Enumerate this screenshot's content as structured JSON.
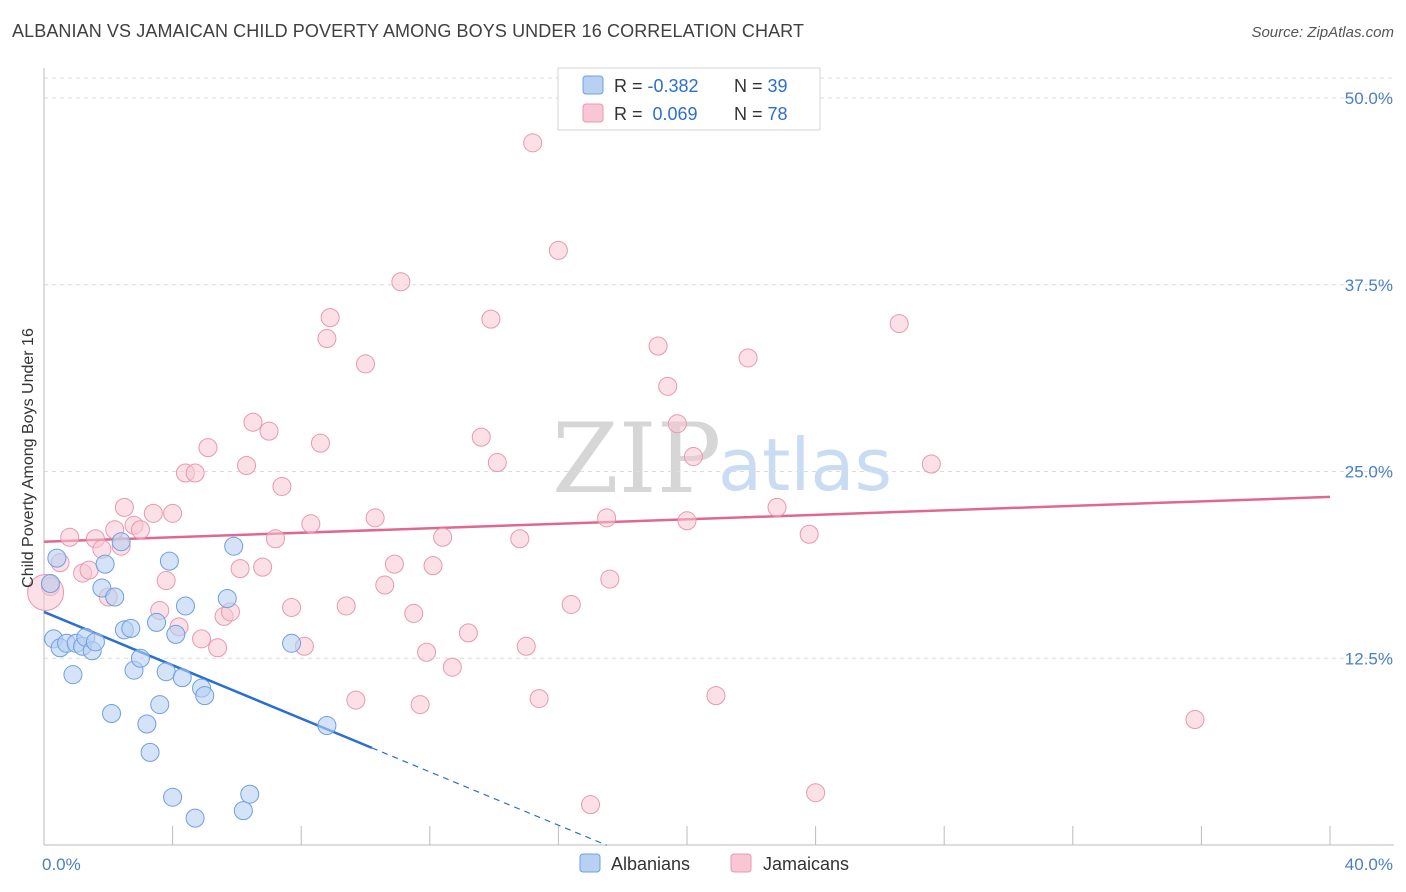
{
  "title": "ALBANIAN VS JAMAICAN CHILD POVERTY AMONG BOYS UNDER 16 CORRELATION CHART",
  "source": "Source: ZipAtlas.com",
  "watermark": {
    "zip": "ZIP",
    "atlas": "atlas"
  },
  "colors": {
    "albanians_fill": "#b8d0f2",
    "albanians_stroke": "#6f9fe0",
    "albanians_line": "#2b6fd0",
    "jamaicans_fill": "#f8c6d4",
    "jamaicans_stroke": "#e898b0",
    "jamaicans_line": "#e06890",
    "tick_text": "#4a7ec8",
    "legend_value": "#2b6fd0"
  },
  "legend": {
    "rows": [
      {
        "r_label": "R = ",
        "r_value": "-0.382",
        "n_label": "N = ",
        "n_value": "39"
      },
      {
        "r_label": "R = ",
        "r_value": " 0.069",
        "n_label": "N = ",
        "n_value": "78"
      }
    ]
  },
  "bottom_legend": {
    "items": [
      "Albanians",
      "Jamaicans"
    ]
  },
  "chart_data": {
    "type": "scatter",
    "title": "ALBANIAN VS JAMAICAN CHILD POVERTY AMONG BOYS UNDER 16 CORRELATION CHART",
    "xlabel": "",
    "ylabel": "Child Poverty Among Boys Under 16",
    "xlim": [
      0,
      40
    ],
    "ylim": [
      0,
      50
    ],
    "x_tick_labels": [
      "0.0%",
      "40.0%"
    ],
    "y_ticks": [
      12.5,
      25.0,
      37.5,
      50.0
    ],
    "y_tick_labels": [
      "12.5%",
      "25.0%",
      "37.5%",
      "50.0%"
    ],
    "grid": true,
    "legend_position": "top-center",
    "series": [
      {
        "name": "Albanians",
        "r": -0.382,
        "n": 39,
        "trend": {
          "x0": 0,
          "y0": 15.6,
          "x1": 10.2,
          "y1": 6.5,
          "dashed_to_x": 17.5
        },
        "points": [
          [
            0.2,
            17.5
          ],
          [
            0.3,
            13.8
          ],
          [
            0.4,
            19.2
          ],
          [
            0.5,
            13.2
          ],
          [
            0.7,
            13.5
          ],
          [
            0.9,
            11.4
          ],
          [
            1.0,
            13.5
          ],
          [
            1.2,
            13.3
          ],
          [
            1.3,
            13.9
          ],
          [
            1.5,
            13.0
          ],
          [
            1.6,
            13.6
          ],
          [
            1.8,
            17.2
          ],
          [
            1.9,
            18.8
          ],
          [
            2.1,
            8.8
          ],
          [
            2.2,
            16.6
          ],
          [
            2.4,
            20.3
          ],
          [
            2.5,
            14.4
          ],
          [
            2.7,
            14.5
          ],
          [
            2.8,
            11.7
          ],
          [
            3.0,
            12.5
          ],
          [
            3.2,
            8.1
          ],
          [
            3.3,
            6.2
          ],
          [
            3.5,
            14.9
          ],
          [
            3.6,
            9.4
          ],
          [
            3.8,
            11.6
          ],
          [
            3.9,
            19.0
          ],
          [
            4.0,
            3.2
          ],
          [
            4.1,
            14.1
          ],
          [
            4.3,
            11.2
          ],
          [
            4.4,
            16.0
          ],
          [
            4.7,
            1.8
          ],
          [
            4.9,
            10.5
          ],
          [
            5.0,
            10.0
          ],
          [
            5.7,
            16.5
          ],
          [
            5.9,
            20.0
          ],
          [
            6.2,
            2.3
          ],
          [
            6.4,
            3.4
          ],
          [
            7.7,
            13.5
          ],
          [
            8.8,
            8.0
          ]
        ]
      },
      {
        "name": "Jamaicans",
        "r": 0.069,
        "n": 78,
        "trend": {
          "x0": 0,
          "y0": 20.3,
          "x1": 40,
          "y1": 23.3
        },
        "points": [
          [
            0.2,
            17.3
          ],
          [
            0.5,
            18.9
          ],
          [
            0.8,
            20.6
          ],
          [
            1.2,
            18.2
          ],
          [
            1.4,
            18.4
          ],
          [
            1.6,
            20.5
          ],
          [
            1.8,
            19.8
          ],
          [
            2.0,
            16.6
          ],
          [
            2.2,
            21.1
          ],
          [
            2.4,
            20.0
          ],
          [
            2.5,
            22.6
          ],
          [
            2.8,
            21.4
          ],
          [
            3.0,
            21.1
          ],
          [
            3.4,
            22.2
          ],
          [
            3.6,
            15.7
          ],
          [
            3.8,
            17.7
          ],
          [
            4.0,
            22.2
          ],
          [
            4.2,
            14.6
          ],
          [
            4.4,
            24.9
          ],
          [
            4.7,
            24.9
          ],
          [
            4.9,
            13.8
          ],
          [
            5.1,
            26.6
          ],
          [
            5.4,
            13.2
          ],
          [
            5.6,
            15.3
          ],
          [
            5.8,
            15.6
          ],
          [
            6.1,
            18.5
          ],
          [
            6.3,
            25.4
          ],
          [
            6.5,
            28.3
          ],
          [
            6.8,
            18.6
          ],
          [
            7.0,
            27.7
          ],
          [
            7.2,
            20.5
          ],
          [
            7.4,
            24.0
          ],
          [
            7.7,
            15.9
          ],
          [
            8.1,
            13.3
          ],
          [
            8.3,
            21.5
          ],
          [
            8.6,
            26.9
          ],
          [
            8.8,
            33.9
          ],
          [
            8.9,
            35.3
          ],
          [
            9.4,
            16.0
          ],
          [
            9.7,
            9.7
          ],
          [
            10.0,
            32.2
          ],
          [
            10.3,
            21.9
          ],
          [
            10.6,
            17.4
          ],
          [
            10.9,
            18.8
          ],
          [
            11.1,
            37.7
          ],
          [
            11.5,
            15.5
          ],
          [
            11.7,
            9.4
          ],
          [
            11.9,
            12.9
          ],
          [
            12.1,
            18.7
          ],
          [
            12.4,
            20.6
          ],
          [
            12.7,
            11.9
          ],
          [
            13.2,
            14.2
          ],
          [
            13.6,
            27.3
          ],
          [
            13.9,
            35.2
          ],
          [
            14.1,
            25.6
          ],
          [
            14.8,
            20.5
          ],
          [
            15.0,
            13.3
          ],
          [
            15.2,
            47.0
          ],
          [
            15.4,
            9.8
          ],
          [
            16.0,
            39.8
          ],
          [
            16.4,
            16.1
          ],
          [
            17.0,
            2.7
          ],
          [
            17.5,
            21.9
          ],
          [
            17.6,
            17.8
          ],
          [
            19.1,
            33.4
          ],
          [
            19.4,
            30.7
          ],
          [
            19.7,
            28.2
          ],
          [
            20.0,
            21.7
          ],
          [
            20.2,
            26.0
          ],
          [
            20.9,
            10.0
          ],
          [
            21.9,
            32.6
          ],
          [
            22.8,
            22.6
          ],
          [
            23.8,
            20.8
          ],
          [
            24.0,
            3.5
          ],
          [
            26.6,
            34.9
          ],
          [
            27.6,
            25.5
          ],
          [
            35.8,
            8.4
          ],
          [
            0.05,
            16.9
          ]
        ]
      }
    ]
  }
}
